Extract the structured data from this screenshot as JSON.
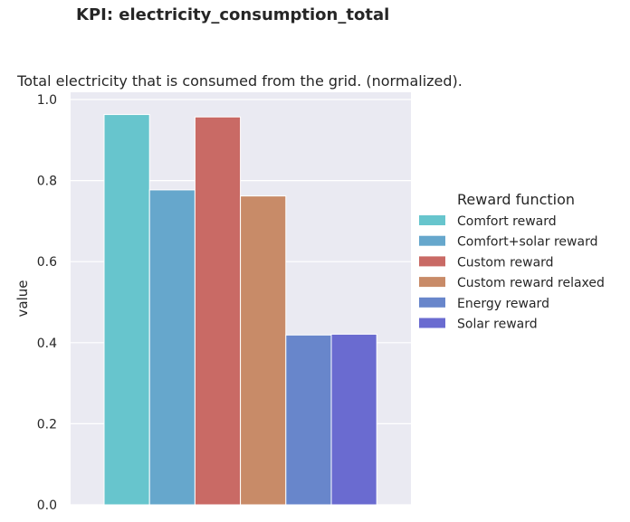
{
  "suptitle": "KPI: electricity_consumption_total",
  "chart_data": {
    "type": "bar",
    "title": "Total electricity that is consumed from the grid. (normalized).",
    "xlabel": "",
    "ylabel": "value",
    "ylim": [
      0,
      1.0
    ],
    "yticks": [
      "0.0",
      "0.2",
      "0.4",
      "0.6",
      "0.8",
      "1.0"
    ],
    "grid": true,
    "legend_title": "Reward function",
    "legend_position": "right",
    "series": [
      {
        "name": "Comfort reward",
        "value": 0.963,
        "color": "#67c5cd"
      },
      {
        "name": "Comfort+solar reward",
        "value": 0.777,
        "color": "#66a7cc"
      },
      {
        "name": "Custom reward",
        "value": 0.957,
        "color": "#c96a65"
      },
      {
        "name": "Custom reward relaxed",
        "value": 0.762,
        "color": "#c88b68"
      },
      {
        "name": "Energy reward",
        "value": 0.419,
        "color": "#6886cb"
      },
      {
        "name": "Solar reward",
        "value": 0.421,
        "color": "#6a6bd0"
      }
    ]
  }
}
